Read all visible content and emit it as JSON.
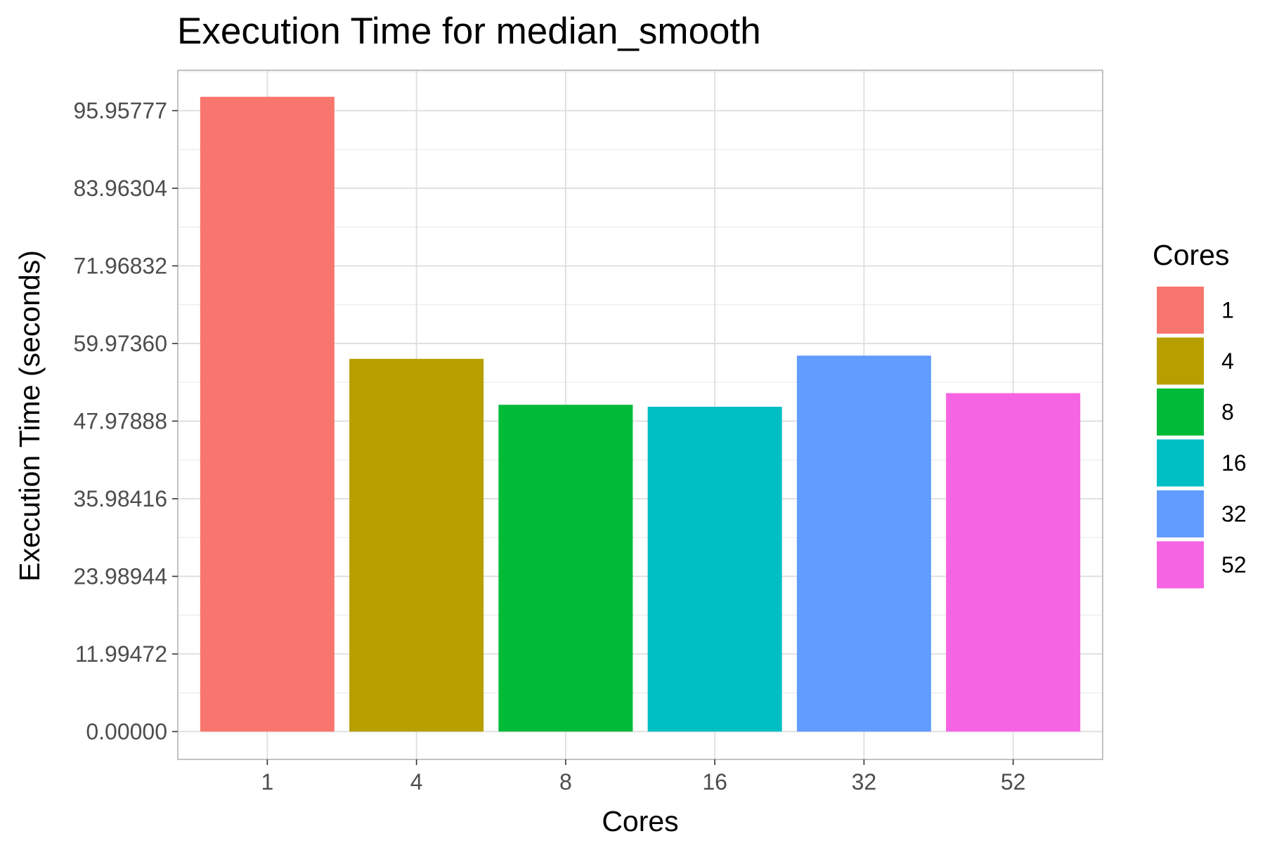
{
  "chart_data": {
    "type": "bar",
    "title": "Execution Time for median_smooth",
    "xlabel": "Cores",
    "ylabel": "Execution Time (seconds)",
    "categories": [
      "1",
      "4",
      "8",
      "16",
      "32",
      "52"
    ],
    "values": [
      98.1,
      57.6,
      50.5,
      50.2,
      58.1,
      52.3
    ],
    "colors": [
      "#F8766D",
      "#B79F00",
      "#00BA38",
      "#00BFC4",
      "#619CFF",
      "#F564E3"
    ],
    "ylim": [
      -4.3,
      102.2
    ],
    "yticks": [
      0.0,
      11.99472,
      23.98944,
      35.98416,
      47.97888,
      59.9736,
      71.96832,
      83.96304,
      95.95777
    ],
    "ytick_labels": [
      "0.00000",
      "11.99472",
      "23.98944",
      "35.98416",
      "47.97888",
      "59.97360",
      "71.96832",
      "83.96304",
      "95.95777"
    ],
    "grid": true,
    "legend": {
      "title": "Cores",
      "position": "right",
      "entries": [
        "1",
        "4",
        "8",
        "16",
        "32",
        "52"
      ]
    }
  }
}
